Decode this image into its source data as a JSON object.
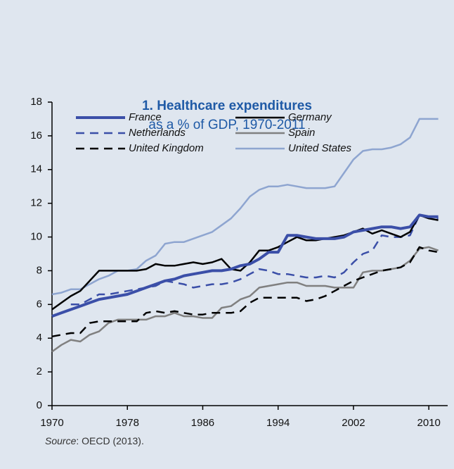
{
  "chart_data": {
    "type": "line",
    "title": "1. Healthcare expenditures",
    "subtitle": "as a % of GDP, 1970-2011",
    "source_label": "Source",
    "source_text": ": OECD (2013).",
    "x": [
      1970,
      1971,
      1972,
      1973,
      1974,
      1975,
      1976,
      1977,
      1978,
      1979,
      1980,
      1981,
      1982,
      1983,
      1984,
      1985,
      1986,
      1987,
      1988,
      1989,
      1990,
      1991,
      1992,
      1993,
      1994,
      1995,
      1996,
      1997,
      1998,
      1999,
      2000,
      2001,
      2002,
      2003,
      2004,
      2005,
      2006,
      2007,
      2008,
      2009,
      2010,
      2011
    ],
    "xlim": [
      1970,
      2012
    ],
    "xticks": [
      1970,
      1978,
      1986,
      1994,
      2002,
      2010
    ],
    "ylim": [
      0,
      18
    ],
    "yticks": [
      0,
      2,
      4,
      6,
      8,
      10,
      12,
      14,
      16,
      18
    ],
    "series": [
      {
        "name": "France",
        "color": "#3b4fa8",
        "width": 4,
        "dash": false,
        "values": [
          5.3,
          5.5,
          5.7,
          5.9,
          6.1,
          6.3,
          6.4,
          6.5,
          6.6,
          6.8,
          7.0,
          7.2,
          7.4,
          7.5,
          7.7,
          7.8,
          7.9,
          8.0,
          8.0,
          8.1,
          8.3,
          8.4,
          8.7,
          9.1,
          9.1,
          10.1,
          10.1,
          10.0,
          9.9,
          9.9,
          9.9,
          10.0,
          10.3,
          10.4,
          10.5,
          10.6,
          10.6,
          10.5,
          10.6,
          11.3,
          11.2,
          11.2
        ]
      },
      {
        "name": "Germany",
        "color": "#000000",
        "width": 2.5,
        "dash": false,
        "values": [
          5.7,
          6.1,
          6.5,
          6.8,
          7.4,
          8.0,
          8.0,
          8.0,
          8.0,
          8.0,
          8.1,
          8.4,
          8.3,
          8.3,
          8.4,
          8.5,
          8.4,
          8.5,
          8.7,
          8.1,
          8.0,
          8.5,
          9.2,
          9.2,
          9.4,
          9.7,
          10.0,
          9.8,
          9.8,
          9.9,
          10.0,
          10.1,
          10.3,
          10.5,
          10.2,
          10.4,
          10.2,
          10.0,
          10.3,
          11.3,
          11.1,
          11.0
        ]
      },
      {
        "name": "Netherlands",
        "color": "#3b4fa8",
        "width": 2.5,
        "dash": true,
        "values": [
          null,
          null,
          6.0,
          6.0,
          6.3,
          6.6,
          6.6,
          6.7,
          6.8,
          6.9,
          7.0,
          7.1,
          7.4,
          7.3,
          7.2,
          7.0,
          7.1,
          7.2,
          7.2,
          7.3,
          7.5,
          7.8,
          8.1,
          8.0,
          7.8,
          7.8,
          7.7,
          7.6,
          7.6,
          7.7,
          7.6,
          7.9,
          8.5,
          9.0,
          9.2,
          10.1,
          10.0,
          10.0,
          10.1,
          11.3,
          11.2,
          11.1
        ]
      },
      {
        "name": "Spain",
        "color": "#808080",
        "width": 2.5,
        "dash": false,
        "values": [
          3.2,
          3.6,
          3.9,
          3.8,
          4.2,
          4.4,
          4.9,
          5.1,
          5.1,
          5.1,
          5.1,
          5.3,
          5.3,
          5.5,
          5.3,
          5.3,
          5.2,
          5.2,
          5.8,
          5.9,
          6.3,
          6.5,
          7.0,
          7.1,
          7.2,
          7.3,
          7.3,
          7.1,
          7.1,
          7.1,
          7.0,
          7.0,
          7.0,
          7.9,
          8.0,
          8.0,
          8.1,
          8.2,
          8.6,
          9.3,
          9.4,
          9.2
        ]
      },
      {
        "name": "United Kingdom",
        "color": "#000000",
        "width": 2.5,
        "dash": true,
        "values": [
          4.1,
          4.2,
          4.3,
          4.3,
          4.9,
          5.0,
          5.0,
          5.0,
          5.0,
          5.0,
          5.5,
          5.6,
          5.5,
          5.6,
          5.5,
          5.4,
          5.4,
          5.5,
          5.5,
          5.5,
          5.6,
          6.1,
          6.4,
          6.4,
          6.4,
          6.4,
          6.4,
          6.2,
          6.3,
          6.5,
          6.8,
          7.1,
          7.4,
          7.6,
          7.8,
          8.0,
          8.1,
          8.2,
          8.5,
          9.4,
          9.2,
          9.1
        ]
      },
      {
        "name": "United States",
        "color": "#8ea5d0",
        "width": 2.5,
        "dash": false,
        "values": [
          6.6,
          6.7,
          6.9,
          6.9,
          7.2,
          7.5,
          7.7,
          8.0,
          8.0,
          8.1,
          8.6,
          8.9,
          9.6,
          9.7,
          9.7,
          9.9,
          10.1,
          10.3,
          10.7,
          11.1,
          11.7,
          12.4,
          12.8,
          13.0,
          13.0,
          13.1,
          13.0,
          12.9,
          12.9,
          12.9,
          13.0,
          13.8,
          14.6,
          15.1,
          15.2,
          15.2,
          15.3,
          15.5,
          15.9,
          17.0,
          17.0,
          17.0
        ]
      }
    ]
  }
}
